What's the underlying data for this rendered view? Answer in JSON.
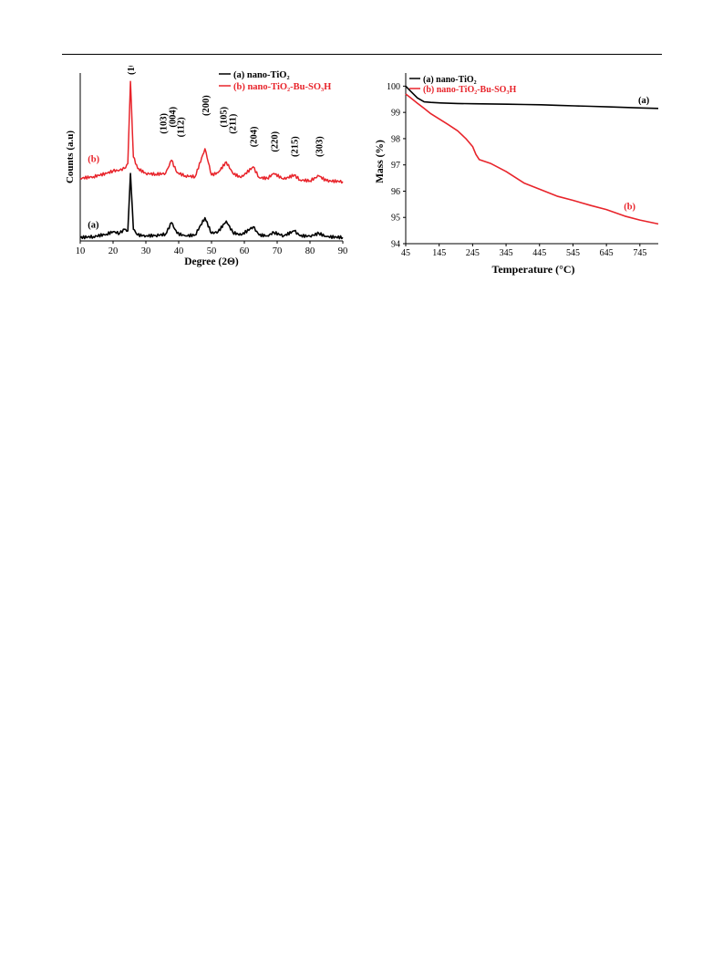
{
  "chart_data": [
    {
      "type": "line",
      "xlabel": "Degree (2Θ)",
      "ylabel": "Counts (a.u)",
      "xlim": [
        10,
        90
      ],
      "xticks": [
        10,
        20,
        30,
        40,
        50,
        60,
        70,
        80,
        90
      ],
      "grid": false,
      "legend": "top-right",
      "series": [
        {
          "name": "(a) nano-TiO₂",
          "label": "(a)",
          "color": "#000000",
          "x": [
            10,
            14,
            18,
            20,
            22,
            23.5,
            24.5,
            25.3,
            26.2,
            27.5,
            30,
            33,
            36,
            37.8,
            39.5,
            42,
            45,
            48,
            50,
            52,
            54.5,
            56.5,
            59,
            62.7,
            64.5,
            67,
            69,
            72,
            75.2,
            77,
            80,
            82.7,
            85,
            90
          ],
          "y": [
            1.0,
            1.5,
            3.0,
            4.5,
            3.5,
            6.0,
            5.0,
            40.0,
            6.0,
            2.5,
            2.0,
            2.2,
            3.0,
            10.0,
            3.5,
            2.0,
            2.5,
            13.0,
            3.5,
            4.5,
            11.0,
            4.0,
            2.5,
            7.5,
            2.5,
            2.0,
            4.0,
            2.0,
            5.0,
            2.0,
            1.8,
            3.5,
            1.5,
            1.0
          ]
        },
        {
          "name": "(b) nano-TiO₂-Bu-SO₃H",
          "label": "(b)",
          "color": "#e8242b",
          "x": [
            10,
            14,
            18,
            20,
            22,
            23.5,
            24.5,
            25.3,
            26.2,
            27.5,
            30,
            33,
            36,
            37.8,
            39.5,
            42,
            45,
            48,
            50,
            52,
            54.5,
            56.5,
            59,
            62.7,
            64.5,
            67,
            69,
            72,
            75.2,
            77,
            80,
            82.7,
            85,
            90
          ],
          "y": [
            37.0,
            38.0,
            40.0,
            41.5,
            42.0,
            43.0,
            46.0,
            96.0,
            50.0,
            43.0,
            40.0,
            39.5,
            40.0,
            48.0,
            40.5,
            38.5,
            38.0,
            55.0,
            39.0,
            40.5,
            47.0,
            40.0,
            37.5,
            44.0,
            37.5,
            37.0,
            40.0,
            36.5,
            39.0,
            36.0,
            35.5,
            38.5,
            35.5,
            35.0
          ]
        }
      ],
      "annotations": [
        {
          "text": "(101)",
          "x": 25.3,
          "y": 100
        },
        {
          "text": "(103)",
          "x": 35.2,
          "y": 64
        },
        {
          "text": "(004)",
          "x": 37.9,
          "y": 68
        },
        {
          "text": "(112)",
          "x": 40.4,
          "y": 62
        },
        {
          "text": "(200)",
          "x": 48.0,
          "y": 75
        },
        {
          "text": "(105)",
          "x": 53.5,
          "y": 68
        },
        {
          "text": "(211)",
          "x": 56.3,
          "y": 64
        },
        {
          "text": "(204)",
          "x": 62.7,
          "y": 56
        },
        {
          "text": "(220)",
          "x": 69.0,
          "y": 53
        },
        {
          "text": "(215)",
          "x": 75.2,
          "y": 50
        },
        {
          "text": "(303)",
          "x": 82.7,
          "y": 50
        }
      ]
    },
    {
      "type": "line",
      "xlabel": "Temperature (°C)",
      "ylabel": "Mass (%)",
      "xlim": [
        45,
        800
      ],
      "ylim": [
        94,
        100.5
      ],
      "xticks": [
        45,
        145,
        245,
        345,
        445,
        545,
        645,
        745
      ],
      "yticks": [
        94,
        95,
        96,
        97,
        98,
        99,
        100
      ],
      "grid": false,
      "legend": "top-left",
      "series": [
        {
          "name": "(a) nano-TiO₂",
          "label": "(a)",
          "color": "#000000",
          "x": [
            45,
            60,
            80,
            100,
            120,
            150,
            200,
            250,
            300,
            350,
            400,
            450,
            500,
            550,
            600,
            650,
            700,
            750,
            800
          ],
          "y": [
            100.0,
            99.8,
            99.55,
            99.4,
            99.38,
            99.36,
            99.34,
            99.33,
            99.32,
            99.31,
            99.3,
            99.29,
            99.27,
            99.25,
            99.23,
            99.21,
            99.19,
            99.17,
            99.15
          ]
        },
        {
          "name": "(b) nano-TiO₂-Bu-SO₃H",
          "label": "(b)",
          "color": "#e8242b",
          "x": [
            45,
            60,
            80,
            100,
            120,
            145,
            170,
            200,
            225,
            245,
            255,
            265,
            300,
            345,
            400,
            450,
            500,
            545,
            600,
            645,
            700,
            745,
            800
          ],
          "y": [
            99.7,
            99.55,
            99.35,
            99.15,
            98.95,
            98.75,
            98.55,
            98.3,
            98.0,
            97.7,
            97.4,
            97.2,
            97.05,
            96.75,
            96.3,
            96.05,
            95.8,
            95.65,
            95.45,
            95.3,
            95.05,
            94.9,
            94.75
          ]
        }
      ]
    }
  ]
}
